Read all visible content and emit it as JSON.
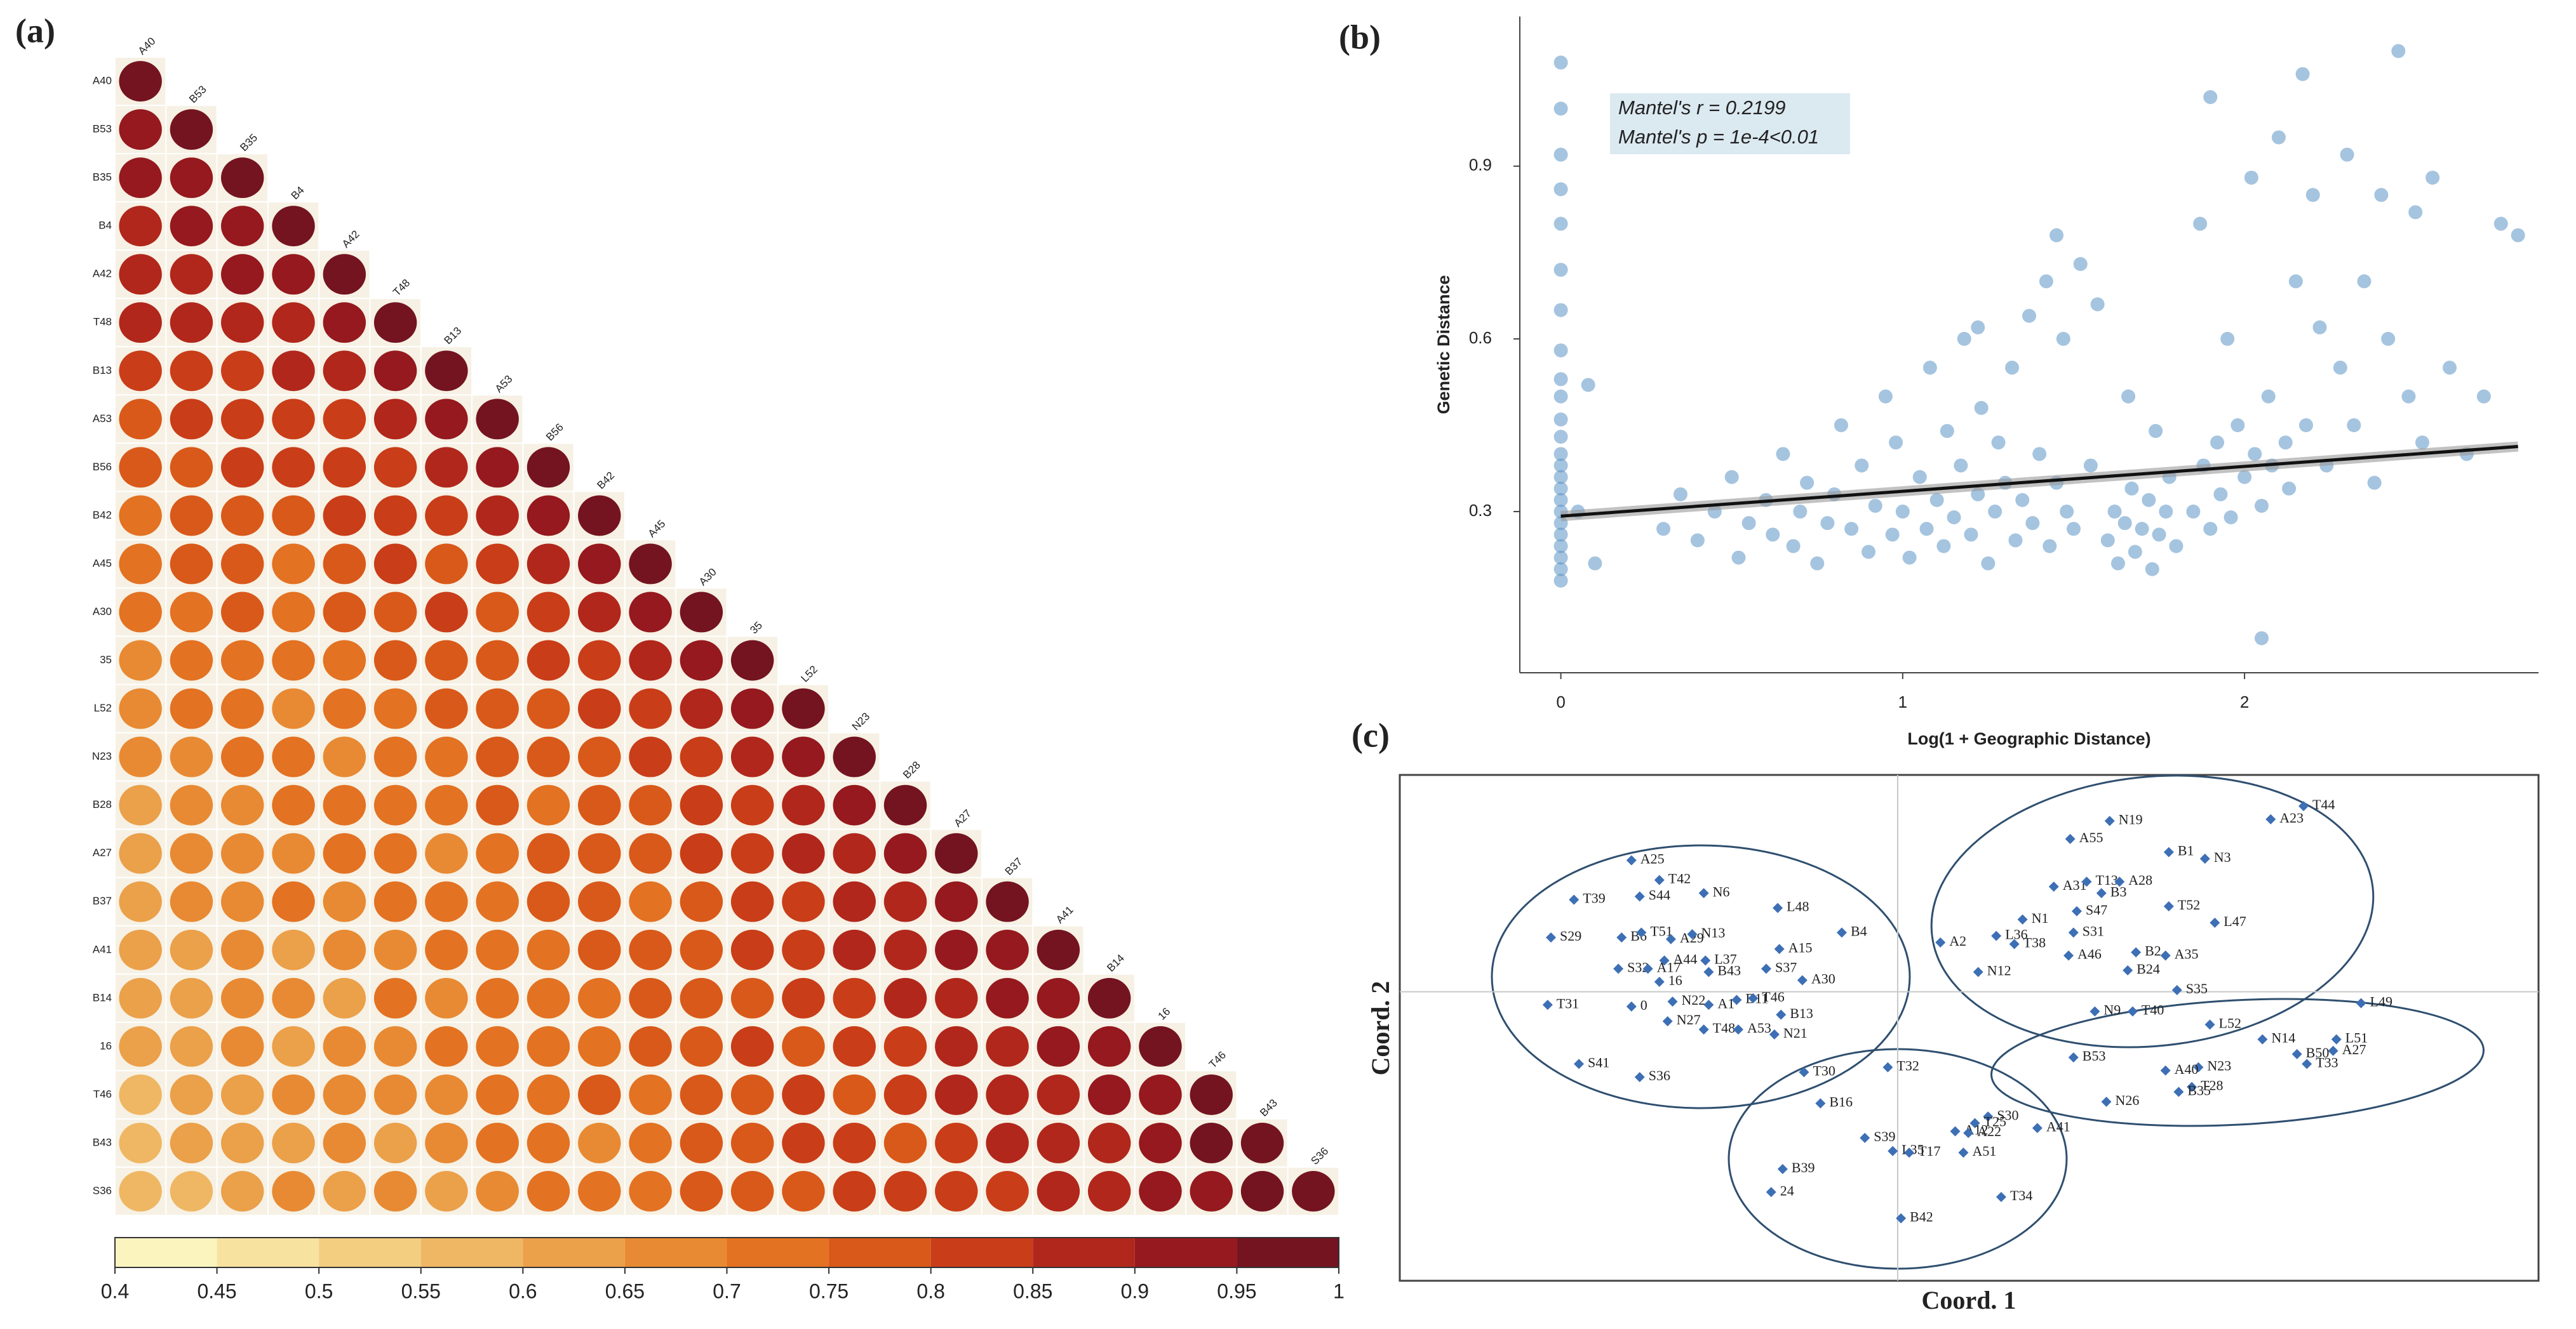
{
  "panel_labels": [
    "(a)",
    "(b)",
    "(c)"
  ],
  "chart_data": [
    {
      "type": "heatmap",
      "labels": [
        "A40",
        "B53",
        "B35",
        "B4",
        "A42",
        "T48",
        "B13",
        "A53",
        "B56",
        "B42",
        "A45",
        "A30",
        "35",
        "L52",
        "N23",
        "B28",
        "A27",
        "B37",
        "A41",
        "B14",
        "16",
        "T46",
        "B43",
        "S36"
      ],
      "values": [
        [
          1
        ],
        [
          0.92,
          1
        ],
        [
          0.9,
          0.93,
          1
        ],
        [
          0.88,
          0.9,
          0.92,
          1
        ],
        [
          0.86,
          0.89,
          0.91,
          0.9,
          1
        ],
        [
          0.85,
          0.87,
          0.88,
          0.86,
          0.92,
          1
        ],
        [
          0.8,
          0.84,
          0.82,
          0.85,
          0.87,
          0.9,
          1
        ],
        [
          0.78,
          0.82,
          0.8,
          0.83,
          0.84,
          0.86,
          0.91,
          1
        ],
        [
          0.76,
          0.79,
          0.81,
          0.8,
          0.82,
          0.84,
          0.85,
          0.9,
          1
        ],
        [
          0.74,
          0.77,
          0.78,
          0.76,
          0.8,
          0.82,
          0.83,
          0.86,
          0.92,
          1
        ],
        [
          0.72,
          0.75,
          0.79,
          0.74,
          0.77,
          0.8,
          0.78,
          0.82,
          0.85,
          0.9,
          1
        ],
        [
          0.7,
          0.73,
          0.76,
          0.72,
          0.75,
          0.78,
          0.8,
          0.79,
          0.82,
          0.86,
          0.91,
          1
        ],
        [
          0.68,
          0.72,
          0.7,
          0.74,
          0.73,
          0.76,
          0.75,
          0.78,
          0.8,
          0.83,
          0.85,
          0.9,
          1
        ],
        [
          0.66,
          0.7,
          0.72,
          0.69,
          0.71,
          0.74,
          0.77,
          0.75,
          0.79,
          0.8,
          0.82,
          0.86,
          0.92,
          1
        ],
        [
          0.65,
          0.68,
          0.7,
          0.72,
          0.69,
          0.73,
          0.74,
          0.76,
          0.78,
          0.77,
          0.81,
          0.83,
          0.87,
          0.91,
          1
        ],
        [
          0.64,
          0.67,
          0.66,
          0.7,
          0.72,
          0.71,
          0.73,
          0.75,
          0.74,
          0.78,
          0.79,
          0.82,
          0.84,
          0.88,
          0.9,
          1
        ],
        [
          0.62,
          0.66,
          0.69,
          0.65,
          0.7,
          0.72,
          0.68,
          0.74,
          0.76,
          0.75,
          0.78,
          0.8,
          0.83,
          0.85,
          0.88,
          0.93,
          1
        ],
        [
          0.63,
          0.65,
          0.67,
          0.7,
          0.66,
          0.71,
          0.73,
          0.7,
          0.75,
          0.77,
          0.74,
          0.79,
          0.81,
          0.84,
          0.86,
          0.89,
          0.92,
          1
        ],
        [
          0.61,
          0.64,
          0.68,
          0.63,
          0.69,
          0.67,
          0.72,
          0.74,
          0.71,
          0.76,
          0.78,
          0.75,
          0.8,
          0.82,
          0.85,
          0.87,
          0.9,
          0.93,
          1
        ],
        [
          0.6,
          0.63,
          0.65,
          0.68,
          0.64,
          0.7,
          0.69,
          0.73,
          0.72,
          0.74,
          0.77,
          0.79,
          0.76,
          0.81,
          0.83,
          0.86,
          0.88,
          0.91,
          0.94,
          1
        ],
        [
          0.62,
          0.6,
          0.66,
          0.64,
          0.67,
          0.65,
          0.71,
          0.7,
          0.74,
          0.73,
          0.75,
          0.78,
          0.8,
          0.77,
          0.82,
          0.84,
          0.87,
          0.89,
          0.9,
          0.93,
          1
        ],
        [
          0.58,
          0.62,
          0.63,
          0.67,
          0.65,
          0.69,
          0.66,
          0.72,
          0.71,
          0.75,
          0.74,
          0.76,
          0.79,
          0.81,
          0.78,
          0.83,
          0.85,
          0.88,
          0.87,
          0.91,
          0.94,
          1
        ],
        [
          0.57,
          0.61,
          0.64,
          0.6,
          0.66,
          0.63,
          0.68,
          0.7,
          0.73,
          0.69,
          0.72,
          0.77,
          0.75,
          0.8,
          0.82,
          0.79,
          0.84,
          0.86,
          0.85,
          0.89,
          0.92,
          0.95,
          1
        ],
        [
          0.55,
          0.59,
          0.62,
          0.65,
          0.61,
          0.67,
          0.64,
          0.69,
          0.71,
          0.7,
          0.73,
          0.75,
          0.78,
          0.76,
          0.81,
          0.8,
          0.83,
          0.82,
          0.86,
          0.88,
          0.9,
          0.93,
          0.96,
          1
        ]
      ],
      "colorbar_ticks": [
        0.4,
        0.45,
        0.5,
        0.55,
        0.6,
        0.65,
        0.7,
        0.75,
        0.8,
        0.85,
        0.9,
        0.95,
        1
      ],
      "colors": [
        "#fbf4bf",
        "#f7e2a0",
        "#f3cd80",
        "#efb763",
        "#eba04a",
        "#e88a33",
        "#e37223",
        "#d9591a",
        "#c93d19",
        "#b1271c",
        "#95191e",
        "#741420"
      ]
    },
    {
      "type": "scatter",
      "xlabel": "Log(1 + Geographic Distance)",
      "ylabel": "Genetic Distance",
      "annotations": [
        "Mantel's r = 0.2199",
        "Mantel's p = 1e-4<0.01"
      ],
      "color": "#5b93c4",
      "xlim": [
        -0.12,
        2.86
      ],
      "ylim": [
        0.02,
        1.16
      ],
      "xticks": [
        0,
        1,
        2
      ],
      "yticks": [
        0.3,
        0.6,
        0.9
      ],
      "fit": {
        "x": [
          0,
          2.8
        ],
        "y": [
          0.292,
          0.413
        ]
      },
      "x": [
        0,
        0,
        0,
        0,
        0,
        0,
        0,
        0,
        0,
        0,
        0,
        0,
        0,
        0,
        0,
        0,
        0,
        0,
        0,
        0,
        0,
        0,
        0,
        0,
        0.08,
        0.05,
        0.1,
        0.3,
        0.35,
        0.4,
        0.45,
        0.5,
        0.52,
        0.55,
        0.6,
        0.62,
        0.65,
        0.68,
        0.7,
        0.72,
        0.75,
        0.78,
        0.8,
        0.82,
        0.85,
        0.88,
        0.9,
        0.92,
        0.95,
        0.97,
        0.98,
        1.0,
        1.02,
        1.05,
        1.07,
        1.08,
        1.1,
        1.12,
        1.13,
        1.15,
        1.17,
        1.18,
        1.2,
        1.22,
        1.23,
        1.25,
        1.27,
        1.28,
        1.3,
        1.32,
        1.33,
        1.35,
        1.37,
        1.38,
        1.4,
        1.42,
        1.43,
        1.45,
        1.47,
        1.48,
        1.5,
        1.52,
        1.55,
        1.57,
        1.45,
        1.22,
        1.6,
        1.62,
        1.63,
        1.65,
        1.67,
        1.68,
        1.7,
        1.72,
        1.73,
        1.75,
        1.77,
        1.78,
        1.8,
        1.66,
        1.74,
        1.85,
        1.87,
        1.88,
        1.9,
        1.9,
        1.92,
        1.93,
        1.95,
        1.96,
        1.98,
        2.0,
        2.02,
        2.03,
        2.05,
        2.05,
        2.07,
        2.08,
        2.1,
        2.12,
        2.13,
        2.15,
        2.17,
        2.18,
        2.2,
        2.22,
        2.24,
        2.28,
        2.3,
        2.32,
        2.35,
        2.38,
        2.4,
        2.42,
        2.45,
        2.48,
        2.5,
        2.52,
        2.55,
        2.6,
        2.65,
        2.7,
        2.75,
        2.8
      ],
      "y": [
        0.18,
        0.2,
        0.22,
        0.24,
        0.26,
        0.28,
        0.3,
        0.32,
        0.34,
        0.36,
        0.38,
        0.4,
        0.43,
        0.46,
        0.5,
        0.53,
        0.58,
        0.65,
        0.72,
        0.8,
        0.86,
        0.92,
        1.0,
        1.08,
        0.52,
        0.3,
        0.21,
        0.27,
        0.33,
        0.25,
        0.3,
        0.36,
        0.22,
        0.28,
        0.32,
        0.26,
        0.4,
        0.24,
        0.3,
        0.35,
        0.21,
        0.28,
        0.33,
        0.45,
        0.27,
        0.38,
        0.23,
        0.31,
        0.5,
        0.26,
        0.42,
        0.3,
        0.22,
        0.36,
        0.27,
        0.55,
        0.32,
        0.24,
        0.44,
        0.29,
        0.38,
        0.6,
        0.26,
        0.33,
        0.48,
        0.21,
        0.3,
        0.42,
        0.35,
        0.55,
        0.25,
        0.32,
        0.64,
        0.28,
        0.4,
        0.7,
        0.24,
        0.35,
        0.6,
        0.3,
        0.27,
        0.73,
        0.38,
        0.66,
        0.78,
        0.62,
        0.25,
        0.3,
        0.21,
        0.28,
        0.34,
        0.23,
        0.27,
        0.32,
        0.2,
        0.26,
        0.3,
        0.36,
        0.24,
        0.5,
        0.44,
        0.3,
        0.8,
        0.38,
        0.27,
        1.02,
        0.42,
        0.33,
        0.6,
        0.29,
        0.45,
        0.36,
        0.88,
        0.4,
        0.31,
        0.08,
        0.5,
        0.38,
        0.95,
        0.42,
        0.34,
        0.7,
        1.06,
        0.45,
        0.85,
        0.62,
        0.38,
        0.55,
        0.92,
        0.45,
        0.7,
        0.35,
        0.85,
        0.6,
        1.1,
        0.5,
        0.82,
        0.42,
        0.88,
        0.55,
        0.4,
        0.5,
        0.8,
        0.78
      ]
    },
    {
      "type": "scatter",
      "xlabel": "Coord. 1",
      "ylabel": "Coord. 2",
      "color": "#3d6fb5",
      "xlim": [
        -3.03,
        3.9
      ],
      "ylim": [
        -1.76,
        1.32
      ],
      "labels": [
        "T39",
        "A25",
        "T42",
        "S44",
        "N6",
        "L48",
        "B4",
        "S29",
        "B6",
        "T51",
        "A29",
        "N13",
        "A44",
        "L37",
        "A15",
        "S32",
        "A17",
        "B43",
        "S37",
        "A30",
        "16",
        "T31",
        "0",
        "N22",
        "A1",
        "B11",
        "T46",
        "B13",
        "N27",
        "T48",
        "A53",
        "N21",
        "S41",
        "S36",
        "T44",
        "N19",
        "A23",
        "A55",
        "B1",
        "N3",
        "A31",
        "T13",
        "A28",
        "B3",
        "S47",
        "T52",
        "N1",
        "L47",
        "S31",
        "L36",
        "T38",
        "A2",
        "A46",
        "B2",
        "A35",
        "B24",
        "N12",
        "S35",
        "L49",
        "N9",
        "T40",
        "L52",
        "N14",
        "L51",
        "A27",
        "B50",
        "T33",
        "B53",
        "N23",
        "A40",
        "T28",
        "B35",
        "N26",
        "T30",
        "T32",
        "B16",
        "S30",
        "T25",
        "A12",
        "A22",
        "A41",
        "S39",
        "L35",
        "T17",
        "A51",
        "B39",
        "24",
        "T34",
        "B42"
      ],
      "x": [
        -1.97,
        -1.62,
        -1.45,
        -1.57,
        -1.18,
        -0.73,
        -0.34,
        -2.11,
        -1.68,
        -1.56,
        -1.38,
        -1.25,
        -1.42,
        -1.17,
        -0.72,
        -1.7,
        -1.52,
        -1.15,
        -0.8,
        -0.58,
        -1.45,
        -2.13,
        -1.62,
        -1.37,
        -1.15,
        -0.98,
        -0.88,
        -0.71,
        -1.4,
        -1.18,
        -0.97,
        -0.75,
        -1.94,
        -1.57,
        2.47,
        1.29,
        2.27,
        1.05,
        1.65,
        1.87,
        0.95,
        1.15,
        1.35,
        1.24,
        1.09,
        1.65,
        0.76,
        1.93,
        1.07,
        0.6,
        0.71,
        0.26,
        1.04,
        1.45,
        1.63,
        1.4,
        0.49,
        1.7,
        2.82,
        1.2,
        1.43,
        1.9,
        2.22,
        2.67,
        2.65,
        2.43,
        2.49,
        1.07,
        1.83,
        1.63,
        1.79,
        1.71,
        1.27,
        -0.57,
        -0.06,
        -0.47,
        0.55,
        0.47,
        0.35,
        0.43,
        0.85,
        -0.2,
        -0.03,
        0.07,
        0.4,
        -0.7,
        -0.77,
        0.63,
        0.02
      ],
      "y": [
        0.56,
        0.8,
        0.68,
        0.58,
        0.6,
        0.51,
        0.36,
        0.33,
        0.33,
        0.36,
        0.32,
        0.35,
        0.19,
        0.19,
        0.26,
        0.14,
        0.14,
        0.12,
        0.14,
        0.07,
        0.06,
        -0.08,
        -0.09,
        -0.06,
        -0.08,
        -0.05,
        -0.04,
        -0.14,
        -0.18,
        -0.23,
        -0.23,
        -0.26,
        -0.44,
        -0.52,
        1.13,
        1.04,
        1.05,
        0.93,
        0.85,
        0.81,
        0.64,
        0.67,
        0.67,
        0.6,
        0.49,
        0.52,
        0.44,
        0.42,
        0.36,
        0.34,
        0.29,
        0.3,
        0.22,
        0.24,
        0.22,
        0.13,
        0.12,
        0.01,
        -0.07,
        -0.12,
        -0.12,
        -0.2,
        -0.29,
        -0.29,
        -0.36,
        -0.38,
        -0.44,
        -0.4,
        -0.46,
        -0.48,
        -0.58,
        -0.61,
        -0.67,
        -0.49,
        -0.46,
        -0.68,
        -0.76,
        -0.8,
        -0.85,
        -0.86,
        -0.83,
        -0.89,
        -0.97,
        -0.98,
        -0.98,
        -1.08,
        -1.22,
        -1.25,
        -1.38
      ]
    }
  ]
}
